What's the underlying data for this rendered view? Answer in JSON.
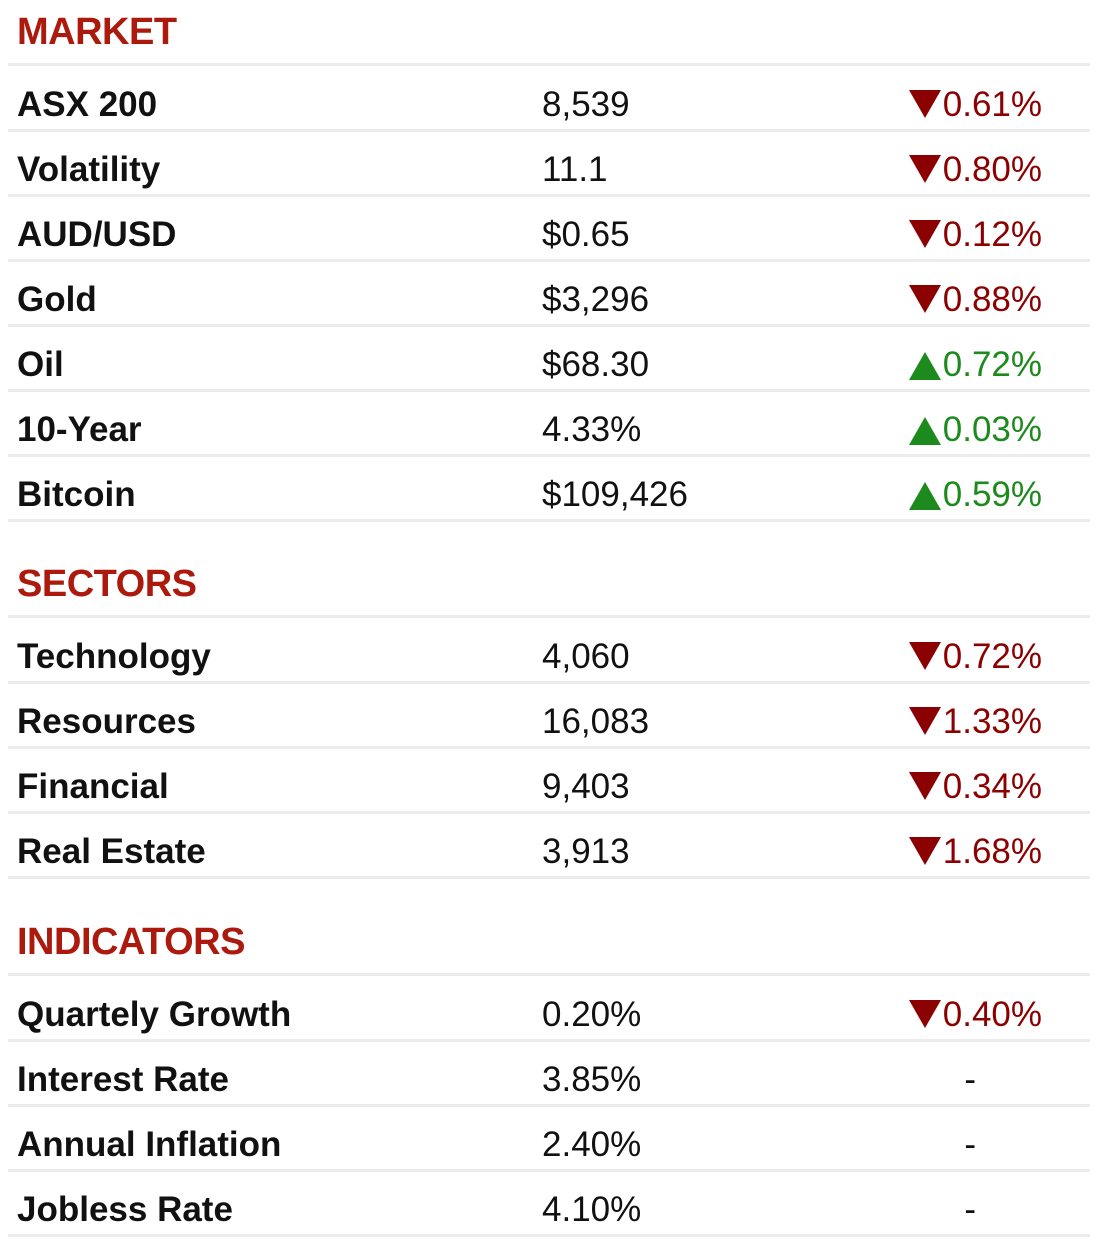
{
  "colors": {
    "title": "#ab1a0c",
    "down": "#8b0000",
    "up": "#1c8a1c",
    "neutral": "#111111",
    "divider": "#ececec"
  },
  "sections": [
    {
      "title": "MARKET",
      "rows": [
        {
          "name": "ASX 200",
          "value": "8,539",
          "change": "0.61%",
          "direction": "down"
        },
        {
          "name": "Volatility",
          "value": "11.1",
          "change": "0.80%",
          "direction": "down"
        },
        {
          "name": "AUD/USD",
          "value": "$0.65",
          "change": "0.12%",
          "direction": "down"
        },
        {
          "name": "Gold",
          "value": "$3,296",
          "change": "0.88%",
          "direction": "down"
        },
        {
          "name": "Oil",
          "value": "$68.30",
          "change": "0.72%",
          "direction": "up"
        },
        {
          "name": "10-Year",
          "value": "4.33%",
          "change": "0.03%",
          "direction": "up"
        },
        {
          "name": "Bitcoin",
          "value": "$109,426",
          "change": "0.59%",
          "direction": "up"
        }
      ]
    },
    {
      "title": "SECTORS",
      "rows": [
        {
          "name": "Technology",
          "value": "4,060",
          "change": "0.72%",
          "direction": "down"
        },
        {
          "name": "Resources",
          "value": "16,083",
          "change": "1.33%",
          "direction": "down"
        },
        {
          "name": "Financial",
          "value": "9,403",
          "change": "0.34%",
          "direction": "down"
        },
        {
          "name": "Real Estate",
          "value": "3,913",
          "change": "1.68%",
          "direction": "down"
        }
      ]
    },
    {
      "title": "INDICATORS",
      "rows": [
        {
          "name": "Quartely Growth",
          "value": "0.20%",
          "change": "0.40%",
          "direction": "down"
        },
        {
          "name": "Interest Rate",
          "value": "3.85%",
          "change": "-",
          "direction": "none"
        },
        {
          "name": "Annual Inflation",
          "value": "2.40%",
          "change": "-",
          "direction": "none"
        },
        {
          "name": "Jobless Rate",
          "value": "4.10%",
          "change": "-",
          "direction": "none"
        }
      ]
    }
  ]
}
